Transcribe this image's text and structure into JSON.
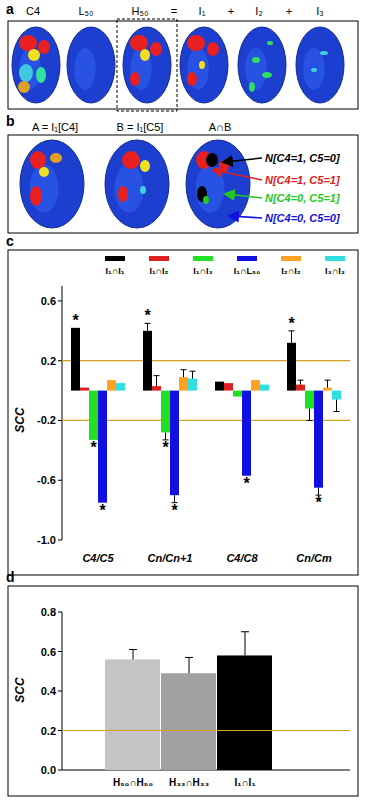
{
  "figure_panels": [
    {
      "panel_label": "a",
      "titles": [
        "C4",
        "L₅₀",
        "H₅₀",
        "=",
        "I₁",
        "+",
        "I₂",
        "+",
        "I₃"
      ]
    },
    {
      "panel_label": "b",
      "titles": [
        "A = I₁[C4]",
        "B = I₁[C5]",
        "A∩B"
      ],
      "arrows": [
        {
          "label": "N[C4=1, C5=0]",
          "color": "#000000"
        },
        {
          "label": "N[C4=1, C5=1]",
          "color": "#e02020"
        },
        {
          "label": "N[C4=0, C5=1]",
          "color": "#22c822"
        },
        {
          "label": "N[C4=0, C5=0]",
          "color": "#1010e0"
        }
      ]
    }
  ],
  "chart_data": [
    {
      "type": "bar",
      "panel_label": "c",
      "y_label": "SCC",
      "categories": [
        "C4/C5",
        "Cn/Cn+1",
        "C4/C8",
        "Cn/Cm"
      ],
      "ylim": [
        -1.0,
        0.7
      ],
      "yticks": [
        0.6,
        0.2,
        -0.2,
        -0.6,
        {
          "value": -1.0,
          "label": "-1.0"
        }
      ],
      "reference_lines": [
        0.2,
        -0.2
      ],
      "legend": "top",
      "series": [
        {
          "name": "I₁∩I₁",
          "color": "#000000",
          "values": [
            0.42,
            0.4,
            0.06,
            0.32
          ],
          "errors": [
            null,
            0.05,
            null,
            0.08
          ],
          "significance": [
            "*",
            "*",
            null,
            "*"
          ]
        },
        {
          "name": "I₁∩I₂",
          "color": "#e02020",
          "values": [
            0.02,
            0.03,
            0.05,
            0.04
          ],
          "errors": [
            null,
            0.07,
            null,
            0.03
          ]
        },
        {
          "name": "I₁∩I₃",
          "color": "#22e022",
          "values": [
            -0.33,
            -0.28,
            -0.04,
            -0.12
          ],
          "errors": [
            null,
            0.05,
            null,
            0.08
          ],
          "significance": [
            "*",
            "*",
            null,
            null
          ]
        },
        {
          "name": "I₁∩L₅₀",
          "color": "#1010e0",
          "values": [
            -0.75,
            -0.7,
            -0.57,
            -0.65
          ],
          "errors": [
            null,
            0.05,
            null,
            0.05
          ],
          "significance": [
            "*",
            "*",
            "*",
            "*"
          ]
        },
        {
          "name": "I₂∩I₂",
          "color": "#ffa020",
          "values": [
            0.07,
            0.09,
            0.07,
            0.02
          ],
          "errors": [
            null,
            0.05,
            null,
            0.05
          ]
        },
        {
          "name": "I₃∩I₃",
          "color": "#30e0e0",
          "values": [
            0.05,
            0.08,
            0.04,
            -0.06
          ],
          "errors": [
            null,
            0.05,
            null,
            0.08
          ]
        }
      ]
    },
    {
      "type": "bar",
      "panel_label": "d",
      "y_label": "SCC",
      "categories": [
        "H₅₀∩H₅₀",
        "H₃₃∩H₃₃",
        "I₁∩I₁"
      ],
      "values": [
        0.56,
        0.49,
        0.58
      ],
      "errors": [
        0.05,
        0.08,
        0.12
      ],
      "colors": [
        "#c4c4c4",
        "#a0a0a0",
        "#000000"
      ],
      "ylim": [
        0.0,
        0.8
      ],
      "yticks": [
        {
          "value": 0.0,
          "label": "0.0"
        },
        0.2,
        0.4,
        0.6,
        0.8
      ],
      "reference_lines": [
        0.2
      ]
    }
  ]
}
